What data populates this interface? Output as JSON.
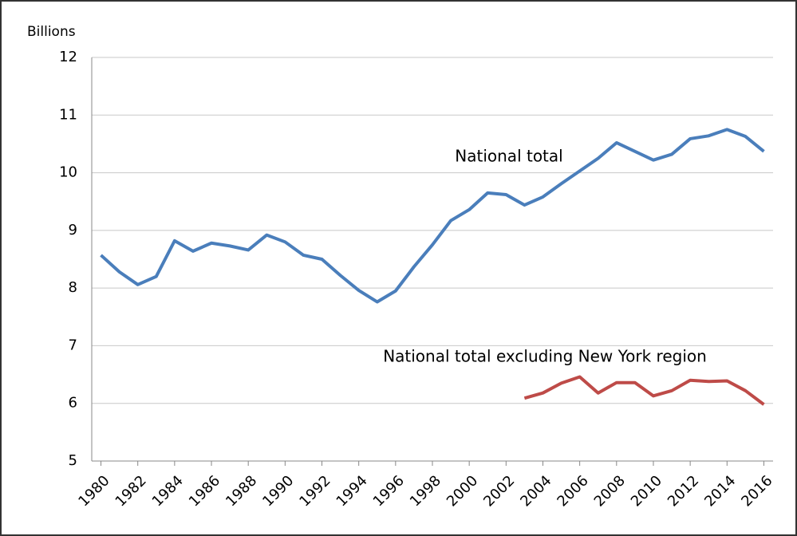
{
  "chart_data": {
    "type": "line",
    "y_label": "Billions",
    "x": [
      1980,
      1981,
      1982,
      1983,
      1984,
      1985,
      1986,
      1987,
      1988,
      1989,
      1990,
      1991,
      1992,
      1993,
      1994,
      1995,
      1996,
      1997,
      1998,
      1999,
      2000,
      2001,
      2002,
      2003,
      2004,
      2005,
      2006,
      2007,
      2008,
      2009,
      2010,
      2011,
      2012,
      2013,
      2014,
      2015,
      2016
    ],
    "series": [
      {
        "name": "National total",
        "color": "#4a7ebb",
        "values": [
          8.57,
          8.28,
          8.06,
          8.2,
          8.82,
          8.64,
          8.78,
          8.73,
          8.66,
          8.92,
          8.8,
          8.57,
          8.5,
          8.22,
          7.96,
          7.76,
          7.95,
          8.37,
          8.75,
          9.17,
          9.36,
          9.65,
          9.62,
          9.44,
          9.58,
          9.81,
          10.03,
          10.25,
          10.52,
          10.37,
          10.22,
          10.32,
          10.59,
          10.64,
          10.75,
          10.63,
          10.37
        ]
      },
      {
        "name": "National total excluding New York region",
        "color": "#be4b48",
        "values": [
          null,
          null,
          null,
          null,
          null,
          null,
          null,
          null,
          null,
          null,
          null,
          null,
          null,
          null,
          null,
          null,
          null,
          null,
          null,
          null,
          null,
          null,
          null,
          6.09,
          6.18,
          6.35,
          6.46,
          6.18,
          6.36,
          6.36,
          6.13,
          6.22,
          6.4,
          6.38,
          6.39,
          6.22,
          5.98
        ]
      }
    ],
    "xlim": [
      1979.5,
      2016.5
    ],
    "xticks": [
      1980,
      1982,
      1984,
      1986,
      1988,
      1990,
      1992,
      1994,
      1996,
      1998,
      2000,
      2002,
      2004,
      2006,
      2008,
      2010,
      2012,
      2014,
      2016
    ],
    "ylim": [
      5,
      12
    ],
    "yticks": [
      5,
      6,
      7,
      8,
      9,
      10,
      11,
      12
    ],
    "grid": true
  }
}
